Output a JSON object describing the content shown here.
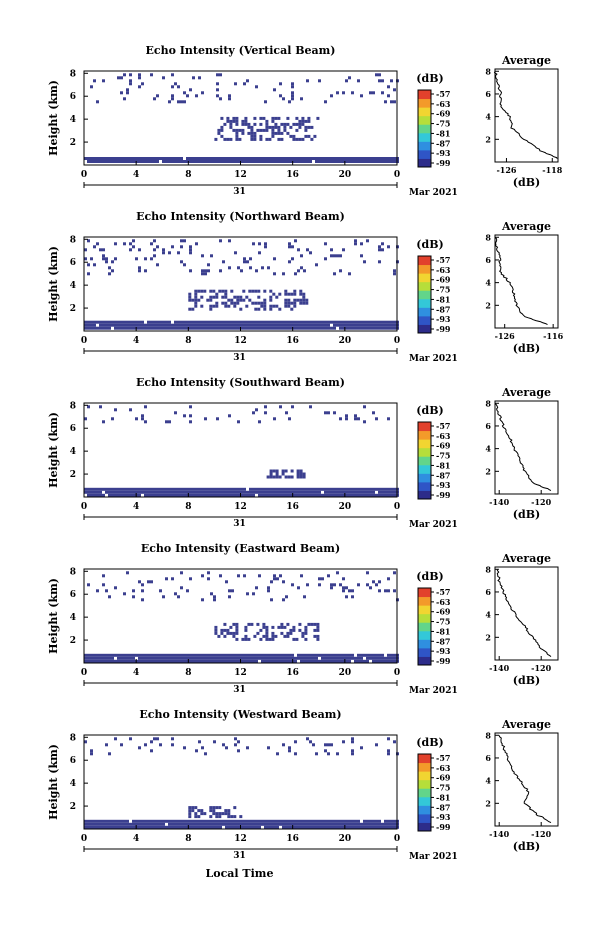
{
  "colors": {
    "echo": "#3b3f8f",
    "colorbar": [
      "#2d2c8a",
      "#2f55c6",
      "#2f8fe0",
      "#33c8d8",
      "#62d58a",
      "#b6de3a",
      "#f1d531",
      "#f39a2a",
      "#e2412c"
    ]
  },
  "colorbar": {
    "unit": "(dB)",
    "ticks": [
      "-57",
      "-63",
      "-69",
      "-75",
      "-81",
      "-87",
      "-93",
      "-99"
    ]
  },
  "axes": {
    "x_ticks": [
      "0",
      "4",
      "8",
      "12",
      "16",
      "20",
      "0"
    ],
    "day_label": "31",
    "date_label": "Mar 2021",
    "y_label": "Height (km)",
    "y_ticks": [
      "8",
      "6",
      "4",
      "2"
    ],
    "x_label": "Local Time"
  },
  "chart_data": [
    {
      "type": "heatmap",
      "title": "Echo Intensity (Vertical Beam)",
      "ylim": [
        0,
        8.2
      ],
      "echo_regions": [
        {
          "label": "surface layer",
          "time_range": [
            0,
            24
          ],
          "height_range": [
            0.2,
            0.7
          ]
        },
        {
          "label": "mid-level echo",
          "time_range": [
            10,
            18
          ],
          "height_range": [
            2.3,
            4.2
          ]
        },
        {
          "label": "upper scattered echo",
          "time_range": [
            0,
            24
          ],
          "height_range": [
            5.5,
            8.0
          ]
        }
      ],
      "average_profile": {
        "title": "Average",
        "xlabel": "(dB)",
        "xticks": [
          "-126",
          "-118"
        ],
        "xlim": [
          -128,
          -117
        ],
        "height": [
          0.3,
          1,
          2,
          3,
          4,
          5,
          6,
          7,
          8
        ],
        "value": [
          -117,
          -120,
          -123,
          -125,
          -125.5,
          -127,
          -127,
          -127.5,
          -128
        ]
      }
    },
    {
      "type": "heatmap",
      "title": "Echo Intensity (Northward Beam)",
      "ylim": [
        0,
        8.2
      ],
      "echo_regions": [
        {
          "label": "surface layer",
          "time_range": [
            0,
            24
          ],
          "height_range": [
            0.2,
            0.9
          ]
        },
        {
          "label": "mid-level echo",
          "time_range": [
            8,
            17
          ],
          "height_range": [
            1.8,
            3.6
          ]
        },
        {
          "label": "upper scattered echo",
          "time_range": [
            0,
            24
          ],
          "height_range": [
            5.0,
            8.0
          ]
        }
      ],
      "average_profile": {
        "title": "Average",
        "xlabel": "(dB)",
        "xticks": [
          "-126",
          "-116"
        ],
        "xlim": [
          -128,
          -115
        ],
        "height": [
          0.3,
          1,
          2,
          3,
          4,
          5,
          6,
          7,
          8
        ],
        "value": [
          -117,
          -122,
          -123.5,
          -124,
          -125,
          -127,
          -127,
          -127.5,
          -128
        ]
      }
    },
    {
      "type": "heatmap",
      "title": "Echo Intensity (Southward Beam)",
      "ylim": [
        0,
        8.2
      ],
      "echo_regions": [
        {
          "label": "surface layer",
          "time_range": [
            0,
            24
          ],
          "height_range": [
            0.2,
            0.8
          ]
        },
        {
          "label": "mid-level echo",
          "time_range": [
            14,
            17
          ],
          "height_range": [
            1.8,
            2.4
          ]
        },
        {
          "label": "upper scattered echo",
          "time_range": [
            0,
            24
          ],
          "height_range": [
            6.5,
            8.0
          ]
        }
      ],
      "average_profile": {
        "title": "Average",
        "xlabel": "(dB)",
        "xticks": [
          "-140",
          "-120"
        ],
        "xlim": [
          -142,
          -112
        ],
        "height": [
          0.3,
          1,
          2,
          3,
          4,
          5,
          6,
          7,
          8
        ],
        "value": [
          -115,
          -124,
          -128,
          -130,
          -133,
          -135,
          -138,
          -140,
          -142
        ]
      }
    },
    {
      "type": "heatmap",
      "title": "Echo Intensity (Eastward Beam)",
      "ylim": [
        0,
        8.2
      ],
      "echo_regions": [
        {
          "label": "surface layer",
          "time_range": [
            0,
            24
          ],
          "height_range": [
            0.2,
            0.8
          ]
        },
        {
          "label": "mid-level echo",
          "time_range": [
            10,
            18
          ],
          "height_range": [
            2.0,
            3.5
          ]
        },
        {
          "label": "upper scattered echo",
          "time_range": [
            0,
            24
          ],
          "height_range": [
            5.5,
            8.0
          ]
        }
      ],
      "average_profile": {
        "title": "Average",
        "xlabel": "(dB)",
        "xticks": [
          "-140",
          "-120"
        ],
        "xlim": [
          -142,
          -112
        ],
        "height": [
          0.3,
          1,
          2,
          3,
          4,
          5,
          6,
          7,
          8
        ],
        "value": [
          -115,
          -120,
          -124,
          -128,
          -132,
          -136,
          -138,
          -140,
          -141
        ]
      }
    },
    {
      "type": "heatmap",
      "title": "Echo Intensity (Westward Beam)",
      "ylim": [
        0,
        8.2
      ],
      "echo_regions": [
        {
          "label": "surface layer",
          "time_range": [
            0,
            24
          ],
          "height_range": [
            0.2,
            0.8
          ]
        },
        {
          "label": "mid-level echo",
          "time_range": [
            8,
            12
          ],
          "height_range": [
            1.2,
            2.0
          ]
        },
        {
          "label": "upper scattered echo",
          "time_range": [
            0,
            24
          ],
          "height_range": [
            6.5,
            8.0
          ]
        }
      ],
      "average_profile": {
        "title": "Average",
        "xlabel": "(dB)",
        "xticks": [
          "-140",
          "-120"
        ],
        "xlim": [
          -142,
          -112
        ],
        "height": [
          0.3,
          1,
          2,
          3,
          4,
          5,
          6,
          7,
          8
        ],
        "value": [
          -115,
          -122,
          -128,
          -126,
          -130,
          -134,
          -136,
          -138,
          -140
        ]
      }
    }
  ]
}
